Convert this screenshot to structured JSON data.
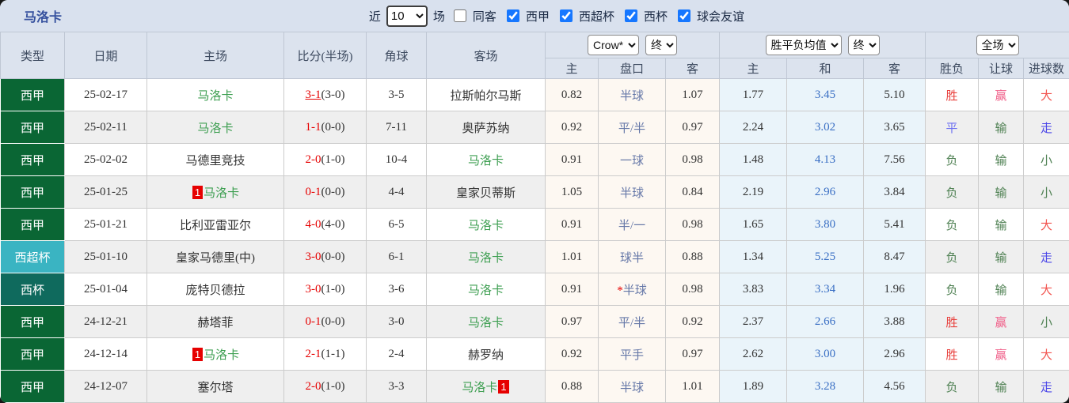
{
  "topbar": {
    "title": "马洛卡",
    "recent_label": "近",
    "recent_value": "10",
    "matches_label": "场",
    "same_venue_label": "同客",
    "same_venue_checked": false,
    "leagues": [
      {
        "label": "西甲",
        "checked": true
      },
      {
        "label": "西超杯",
        "checked": true
      },
      {
        "label": "西杯",
        "checked": true
      },
      {
        "label": "球会友谊",
        "checked": true
      }
    ]
  },
  "header": {
    "type": "类型",
    "date": "日期",
    "home": "主场",
    "score": "比分(半场)",
    "corner": "角球",
    "away": "客场",
    "bookmaker_select": "Crow*",
    "odds_stage_select": "终",
    "avg_select": "胜平负均值",
    "avg_stage_select": "终",
    "scope_select": "全场",
    "odds_home": "主",
    "odds_handicap": "盘口",
    "odds_away": "客",
    "avg_home": "主",
    "avg_draw": "和",
    "avg_away": "客",
    "result_wdl": "胜负",
    "result_handicap": "让球",
    "result_goals": "进球数"
  },
  "colors": {
    "league": {
      "西甲": "#0a6634",
      "西超杯": "#3ab4c2",
      "西杯": "#0f6a5d"
    },
    "outcome": {
      "胜": "#e8413e",
      "平": "#6b6ef0",
      "负": "#4e8052",
      "赢": "#f0608a",
      "输": "#4e8052",
      "大": "#f2544f",
      "小": "#4e8052",
      "走": "#4a45e8"
    },
    "team_highlight": "#3c9e50",
    "score_red": "#e60000"
  },
  "rows": [
    {
      "type": "西甲",
      "date": "25-02-17",
      "home": {
        "name": "马洛卡",
        "hl": true,
        "badge": null,
        "badge_pos": null
      },
      "score_full": "3-1",
      "score_half": "(3-0)",
      "score_underline": true,
      "corner": "3-5",
      "away": {
        "name": "拉斯帕尔马斯",
        "hl": false,
        "badge": null,
        "badge_pos": null
      },
      "odds_home": "0.82",
      "handicap_star": "",
      "handicap": "半球",
      "odds_away": "1.07",
      "avg_home": "1.77",
      "avg_draw": "3.45",
      "avg_away": "5.10",
      "result_wdl": "胜",
      "result_let": "赢",
      "result_goal": "大"
    },
    {
      "type": "西甲",
      "date": "25-02-11",
      "home": {
        "name": "马洛卡",
        "hl": true,
        "badge": null,
        "badge_pos": null
      },
      "score_full": "1-1",
      "score_half": "(0-0)",
      "score_underline": false,
      "corner": "7-11",
      "away": {
        "name": "奥萨苏纳",
        "hl": false,
        "badge": null,
        "badge_pos": null
      },
      "odds_home": "0.92",
      "handicap_star": "",
      "handicap": "平/半",
      "odds_away": "0.97",
      "avg_home": "2.24",
      "avg_draw": "3.02",
      "avg_away": "3.65",
      "result_wdl": "平",
      "result_let": "输",
      "result_goal": "走"
    },
    {
      "type": "西甲",
      "date": "25-02-02",
      "home": {
        "name": "马德里竞技",
        "hl": false,
        "badge": null,
        "badge_pos": null
      },
      "score_full": "2-0",
      "score_half": "(1-0)",
      "score_underline": false,
      "corner": "10-4",
      "away": {
        "name": "马洛卡",
        "hl": true,
        "badge": null,
        "badge_pos": null
      },
      "odds_home": "0.91",
      "handicap_star": "",
      "handicap": "一球",
      "odds_away": "0.98",
      "avg_home": "1.48",
      "avg_draw": "4.13",
      "avg_away": "7.56",
      "result_wdl": "负",
      "result_let": "输",
      "result_goal": "小"
    },
    {
      "type": "西甲",
      "date": "25-01-25",
      "home": {
        "name": "马洛卡",
        "hl": true,
        "badge": "1",
        "badge_pos": "before"
      },
      "score_full": "0-1",
      "score_half": "(0-0)",
      "score_underline": false,
      "corner": "4-4",
      "away": {
        "name": "皇家贝蒂斯",
        "hl": false,
        "badge": null,
        "badge_pos": null
      },
      "odds_home": "1.05",
      "handicap_star": "",
      "handicap": "半球",
      "odds_away": "0.84",
      "avg_home": "2.19",
      "avg_draw": "2.96",
      "avg_away": "3.84",
      "result_wdl": "负",
      "result_let": "输",
      "result_goal": "小"
    },
    {
      "type": "西甲",
      "date": "25-01-21",
      "home": {
        "name": "比利亚雷亚尔",
        "hl": false,
        "badge": null,
        "badge_pos": null
      },
      "score_full": "4-0",
      "score_half": "(4-0)",
      "score_underline": false,
      "corner": "6-5",
      "away": {
        "name": "马洛卡",
        "hl": true,
        "badge": null,
        "badge_pos": null
      },
      "odds_home": "0.91",
      "handicap_star": "",
      "handicap": "半/一",
      "odds_away": "0.98",
      "avg_home": "1.65",
      "avg_draw": "3.80",
      "avg_away": "5.41",
      "result_wdl": "负",
      "result_let": "输",
      "result_goal": "大"
    },
    {
      "type": "西超杯",
      "date": "25-01-10",
      "home": {
        "name": "皇家马德里(中)",
        "hl": false,
        "badge": null,
        "badge_pos": null
      },
      "score_full": "3-0",
      "score_half": "(0-0)",
      "score_underline": false,
      "corner": "6-1",
      "away": {
        "name": "马洛卡",
        "hl": true,
        "badge": null,
        "badge_pos": null
      },
      "odds_home": "1.01",
      "handicap_star": "",
      "handicap": "球半",
      "odds_away": "0.88",
      "avg_home": "1.34",
      "avg_draw": "5.25",
      "avg_away": "8.47",
      "result_wdl": "负",
      "result_let": "输",
      "result_goal": "走"
    },
    {
      "type": "西杯",
      "date": "25-01-04",
      "home": {
        "name": "庞特贝德拉",
        "hl": false,
        "badge": null,
        "badge_pos": null
      },
      "score_full": "3-0",
      "score_half": "(1-0)",
      "score_underline": false,
      "corner": "3-6",
      "away": {
        "name": "马洛卡",
        "hl": true,
        "badge": null,
        "badge_pos": null
      },
      "odds_home": "0.91",
      "handicap_star": "*",
      "handicap": "半球",
      "odds_away": "0.98",
      "avg_home": "3.83",
      "avg_draw": "3.34",
      "avg_away": "1.96",
      "result_wdl": "负",
      "result_let": "输",
      "result_goal": "大"
    },
    {
      "type": "西甲",
      "date": "24-12-21",
      "home": {
        "name": "赫塔菲",
        "hl": false,
        "badge": null,
        "badge_pos": null
      },
      "score_full": "0-1",
      "score_half": "(0-0)",
      "score_underline": false,
      "corner": "3-0",
      "away": {
        "name": "马洛卡",
        "hl": true,
        "badge": null,
        "badge_pos": null
      },
      "odds_home": "0.97",
      "handicap_star": "",
      "handicap": "平/半",
      "odds_away": "0.92",
      "avg_home": "2.37",
      "avg_draw": "2.66",
      "avg_away": "3.88",
      "result_wdl": "胜",
      "result_let": "赢",
      "result_goal": "小"
    },
    {
      "type": "西甲",
      "date": "24-12-14",
      "home": {
        "name": "马洛卡",
        "hl": true,
        "badge": "1",
        "badge_pos": "before"
      },
      "score_full": "2-1",
      "score_half": "(1-1)",
      "score_underline": false,
      "corner": "2-4",
      "away": {
        "name": "赫罗纳",
        "hl": false,
        "badge": null,
        "badge_pos": null
      },
      "odds_home": "0.92",
      "handicap_star": "",
      "handicap": "平手",
      "odds_away": "0.97",
      "avg_home": "2.62",
      "avg_draw": "3.00",
      "avg_away": "2.96",
      "result_wdl": "胜",
      "result_let": "赢",
      "result_goal": "大"
    },
    {
      "type": "西甲",
      "date": "24-12-07",
      "home": {
        "name": "塞尔塔",
        "hl": false,
        "badge": null,
        "badge_pos": null
      },
      "score_full": "2-0",
      "score_half": "(1-0)",
      "score_underline": false,
      "corner": "3-3",
      "away": {
        "name": "马洛卡",
        "hl": true,
        "badge": "1",
        "badge_pos": "after"
      },
      "odds_home": "0.88",
      "handicap_star": "",
      "handicap": "半球",
      "odds_away": "1.01",
      "avg_home": "1.89",
      "avg_draw": "3.28",
      "avg_away": "4.56",
      "result_wdl": "负",
      "result_let": "输",
      "result_goal": "走"
    }
  ]
}
